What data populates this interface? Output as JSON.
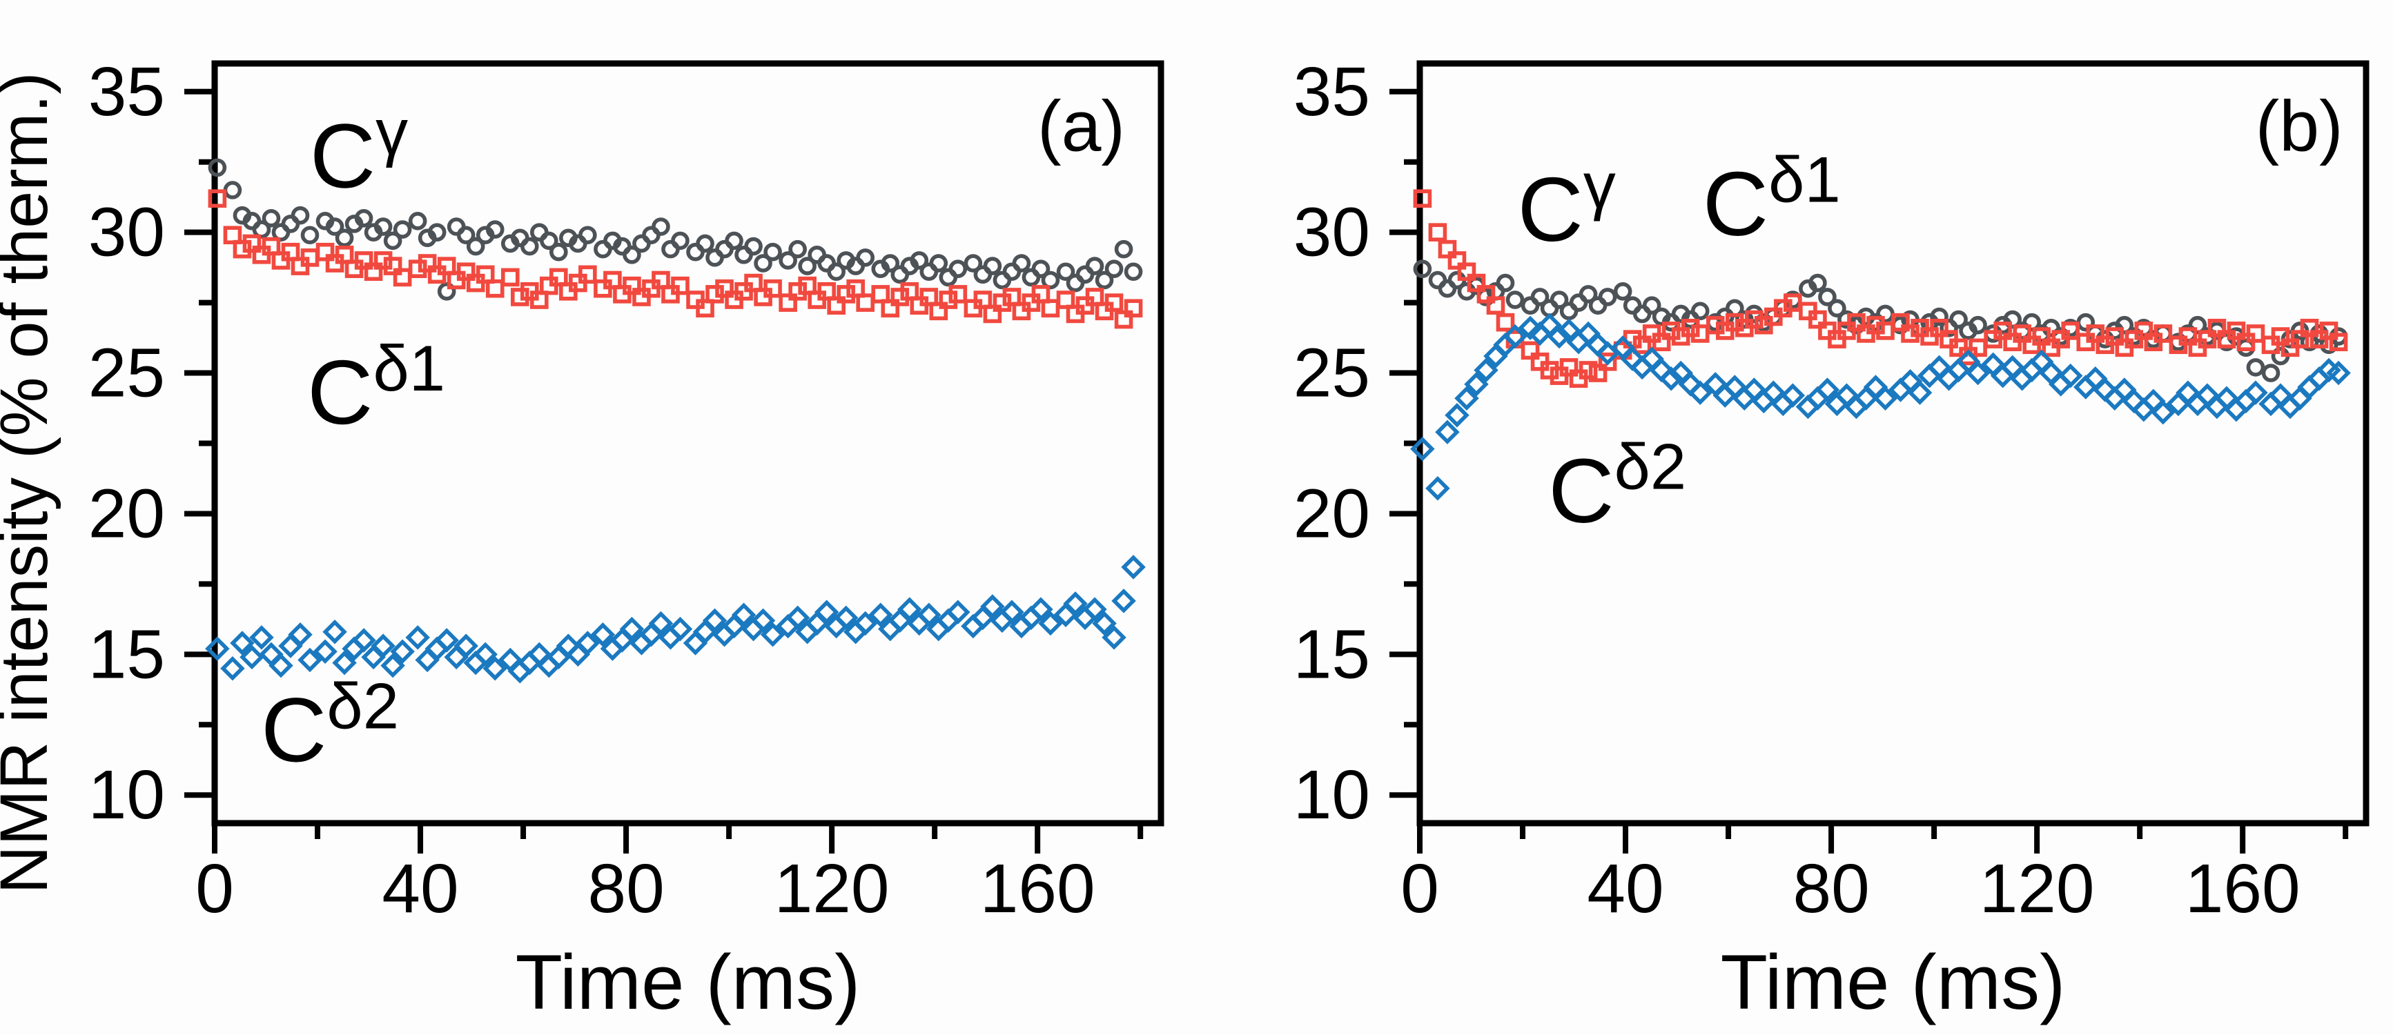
{
  "figure": {
    "background": "#fdfdfd",
    "axis_color": "#000000",
    "ylabel": "NMR intensity (% of therm.)",
    "xlabel": "Time (ms)",
    "colors": {
      "c_gamma": "#4d5257",
      "c_delta1": "#f1493f",
      "c_delta2": "#1b79c0"
    }
  },
  "chart_data": [
    {
      "type": "scatter",
      "panel_label": "(a)",
      "xlabel": "Time (ms)",
      "ylabel": "NMR intensity (% of therm.)",
      "xlim": [
        0,
        184
      ],
      "ylim": [
        9,
        36
      ],
      "xticks": [
        0,
        40,
        80,
        120,
        160
      ],
      "xticks_minor": [
        20,
        60,
        100,
        140,
        180
      ],
      "yticks": [
        10,
        15,
        20,
        25,
        30,
        35
      ],
      "yticks_minor": [
        12.5,
        17.5,
        22.5,
        27.5,
        32.5
      ],
      "grid": false,
      "legend": "in-plot text labels",
      "t_start": 1,
      "t_step": 2,
      "tag": {
        "text": "(a)",
        "t": 168.5,
        "v": 32.9
      },
      "series": [
        {
          "name": "C-gamma",
          "marker": "circle",
          "color": "#4d5257",
          "label": {
            "base": "C",
            "sup": "γ",
            "t": 18.5,
            "v": 31.6
          },
          "values": [
            32.3,
            31.5,
            30.6,
            30.4,
            30.1,
            30.5,
            30.0,
            30.3,
            30.6,
            29.9,
            30.4,
            30.2,
            29.8,
            30.3,
            30.5,
            30.0,
            30.2,
            29.7,
            30.1,
            30.4,
            29.8,
            30.0,
            27.9,
            30.2,
            29.9,
            29.5,
            29.9,
            30.1,
            29.6,
            29.8,
            29.5,
            30.0,
            29.7,
            29.3,
            29.8,
            29.6,
            29.9,
            29.4,
            29.7,
            29.5,
            29.2,
            29.6,
            29.9,
            30.2,
            29.4,
            29.7,
            29.3,
            29.6,
            29.1,
            29.4,
            29.7,
            29.2,
            29.5,
            28.9,
            29.3,
            29.0,
            29.4,
            28.8,
            29.2,
            28.9,
            28.6,
            29.0,
            28.8,
            29.1,
            28.7,
            28.9,
            28.5,
            28.8,
            29.0,
            28.6,
            28.9,
            28.4,
            28.7,
            28.9,
            28.5,
            28.8,
            28.3,
            28.6,
            28.9,
            28.4,
            28.7,
            28.3,
            28.6,
            28.2,
            28.5,
            28.8,
            28.3,
            28.7,
            29.4,
            28.6
          ]
        },
        {
          "name": "C-delta1",
          "marker": "square",
          "color": "#f1493f",
          "label": {
            "base": "C",
            "sup": "δ1",
            "t": 18,
            "v": 23.2
          },
          "values": [
            31.2,
            29.9,
            29.4,
            29.6,
            29.2,
            29.5,
            29.0,
            29.3,
            28.8,
            29.1,
            29.3,
            28.9,
            29.2,
            28.7,
            29.0,
            28.6,
            29.0,
            28.8,
            28.4,
            28.7,
            28.9,
            28.5,
            28.8,
            28.3,
            28.6,
            28.2,
            28.5,
            28.0,
            28.4,
            27.7,
            27.9,
            27.6,
            28.1,
            28.4,
            27.9,
            28.2,
            28.5,
            28.0,
            28.3,
            27.8,
            28.1,
            27.7,
            28.0,
            28.3,
            27.8,
            28.1,
            27.6,
            27.3,
            27.8,
            28.0,
            27.6,
            27.9,
            28.2,
            27.7,
            28.0,
            27.5,
            27.9,
            28.1,
            27.6,
            27.9,
            27.4,
            27.8,
            28.0,
            27.5,
            27.8,
            27.3,
            27.7,
            27.9,
            27.4,
            27.7,
            27.2,
            27.6,
            27.8,
            27.3,
            27.6,
            27.1,
            27.5,
            27.7,
            27.2,
            27.5,
            27.8,
            27.3,
            27.6,
            27.1,
            27.4,
            27.7,
            27.2,
            27.5,
            26.9,
            27.3
          ]
        },
        {
          "name": "C-delta2",
          "marker": "diamond",
          "color": "#1b79c0",
          "label": {
            "base": "C",
            "sup": "δ2",
            "t": 9,
            "v": 11.2
          },
          "values": [
            15.2,
            14.5,
            15.4,
            14.9,
            15.6,
            15.0,
            14.6,
            15.3,
            15.7,
            14.8,
            15.1,
            15.8,
            14.7,
            15.2,
            15.5,
            14.9,
            15.3,
            14.6,
            15.1,
            15.6,
            14.8,
            15.2,
            15.5,
            14.9,
            15.3,
            14.7,
            15.0,
            14.5,
            14.8,
            14.4,
            14.7,
            15.0,
            14.6,
            14.9,
            15.3,
            15.0,
            15.4,
            15.7,
            15.2,
            15.5,
            15.9,
            15.4,
            15.7,
            16.1,
            15.6,
            15.9,
            15.4,
            15.8,
            16.2,
            15.7,
            16.0,
            16.4,
            15.9,
            16.2,
            15.7,
            16.0,
            16.3,
            15.8,
            16.1,
            16.5,
            16.0,
            16.3,
            15.8,
            16.1,
            16.4,
            15.9,
            16.2,
            16.6,
            16.1,
            16.4,
            15.9,
            16.2,
            16.5,
            16.0,
            16.3,
            16.7,
            16.2,
            16.5,
            16.0,
            16.3,
            16.6,
            16.1,
            16.4,
            16.8,
            16.3,
            16.6,
            16.1,
            15.6,
            16.9,
            18.1
          ]
        }
      ]
    },
    {
      "type": "scatter",
      "panel_label": "(b)",
      "xlabel": "Time (ms)",
      "ylabel": "NMR intensity (% of therm.)",
      "xlim": [
        0,
        184
      ],
      "ylim": [
        9,
        36
      ],
      "xticks": [
        0,
        40,
        80,
        120,
        160
      ],
      "xticks_minor": [
        20,
        60,
        100,
        140,
        180
      ],
      "yticks": [
        10,
        15,
        20,
        25,
        30,
        35
      ],
      "yticks_minor": [
        12.5,
        17.5,
        22.5,
        27.5,
        32.5
      ],
      "grid": false,
      "legend": "in-plot text labels",
      "t_start": 1,
      "t_step": 2,
      "tag": {
        "text": "(b)",
        "t": 171,
        "v": 32.9
      },
      "series": [
        {
          "name": "C-gamma",
          "marker": "circle",
          "color": "#4d5257",
          "label": {
            "base": "C",
            "sup": "γ",
            "t": 19,
            "v": 29.7
          },
          "values": [
            28.7,
            28.3,
            28.0,
            28.3,
            27.9,
            28.1,
            27.7,
            27.9,
            28.2,
            27.6,
            27.4,
            27.7,
            27.3,
            27.6,
            27.2,
            27.5,
            27.8,
            27.4,
            27.7,
            27.9,
            27.4,
            27.1,
            27.4,
            27.0,
            26.8,
            27.1,
            26.9,
            27.2,
            26.8,
            27.0,
            27.3,
            26.9,
            27.1,
            26.8,
            27.0,
            27.3,
            27.6,
            28.0,
            28.2,
            27.7,
            27.3,
            26.9,
            26.7,
            27.0,
            26.8,
            27.1,
            26.7,
            26.9,
            26.6,
            26.8,
            27.0,
            26.6,
            26.9,
            26.5,
            26.7,
            26.4,
            26.7,
            26.9,
            26.5,
            26.8,
            26.4,
            26.6,
            26.3,
            26.6,
            26.8,
            26.4,
            26.2,
            26.5,
            26.7,
            26.3,
            26.6,
            26.2,
            26.4,
            26.1,
            26.4,
            26.7,
            26.3,
            26.5,
            26.1,
            26.3,
            25.9,
            25.2,
            25.0,
            25.6,
            26.2,
            26.5,
            26.1,
            26.4,
            26.0,
            26.3
          ]
        },
        {
          "name": "C-delta1",
          "marker": "square",
          "color": "#f1493f",
          "label": {
            "base": "C",
            "sup": "δ1",
            "t": 55,
            "v": 29.9
          },
          "values": [
            31.2,
            30.0,
            29.4,
            29.0,
            28.6,
            28.2,
            27.8,
            27.4,
            26.8,
            26.2,
            25.8,
            25.4,
            25.1,
            24.9,
            25.2,
            24.8,
            25.1,
            25.0,
            25.4,
            25.8,
            26.2,
            26.0,
            26.4,
            26.1,
            26.5,
            26.3,
            26.6,
            26.4,
            26.7,
            26.5,
            26.8,
            26.6,
            26.9,
            26.7,
            27.0,
            27.3,
            27.5,
            27.2,
            26.9,
            26.5,
            26.2,
            26.5,
            26.8,
            26.4,
            26.7,
            26.5,
            26.8,
            26.4,
            26.6,
            26.3,
            26.6,
            26.2,
            25.9,
            25.6,
            25.9,
            26.2,
            26.5,
            26.1,
            26.4,
            26.0,
            26.3,
            25.9,
            26.2,
            26.5,
            26.1,
            26.4,
            26.0,
            26.3,
            25.9,
            26.2,
            26.5,
            26.1,
            26.4,
            26.0,
            26.3,
            25.9,
            26.2,
            26.6,
            26.2,
            26.5,
            26.1,
            26.4,
            26.0,
            26.3,
            25.9,
            26.2,
            26.6,
            26.2,
            26.5,
            26.1
          ]
        },
        {
          "name": "C-delta2",
          "marker": "diamond",
          "color": "#1b79c0",
          "label": {
            "base": "C",
            "sup": "δ2",
            "t": 25,
            "v": 19.7
          },
          "values": [
            22.3,
            20.9,
            22.9,
            23.5,
            24.1,
            24.6,
            25.1,
            25.6,
            26.0,
            26.3,
            26.6,
            26.4,
            26.7,
            26.3,
            26.5,
            26.1,
            26.4,
            26.0,
            25.7,
            25.9,
            25.5,
            25.2,
            25.5,
            25.1,
            24.8,
            25.0,
            24.6,
            24.3,
            24.6,
            24.2,
            24.5,
            24.1,
            24.4,
            24.0,
            24.3,
            23.9,
            24.2,
            23.8,
            24.1,
            24.4,
            23.9,
            24.2,
            23.8,
            24.1,
            24.5,
            24.1,
            24.4,
            24.7,
            24.3,
            24.9,
            25.2,
            24.8,
            25.1,
            25.4,
            25.0,
            25.3,
            24.9,
            25.2,
            24.8,
            25.1,
            25.4,
            25.0,
            24.6,
            24.9,
            24.5,
            24.8,
            24.4,
            24.1,
            24.4,
            24.0,
            23.7,
            24.0,
            23.6,
            23.9,
            24.3,
            23.9,
            24.2,
            23.8,
            24.1,
            23.7,
            24.0,
            24.3,
            23.9,
            24.2,
            23.8,
            24.1,
            24.5,
            24.8,
            25.1,
            25.0
          ]
        }
      ]
    }
  ]
}
